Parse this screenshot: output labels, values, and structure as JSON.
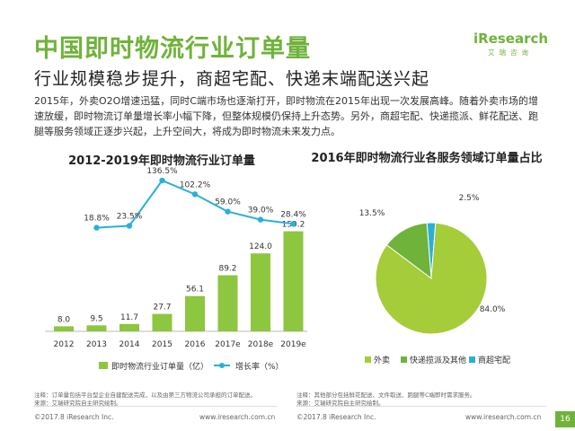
{
  "header": {
    "title": "中国即时物流行业订单量",
    "subtitle": "行业规模稳步提升，商超宅配、快递末端配送兴起",
    "logo": "iResearch",
    "logo_sub": "艾瑞咨询"
  },
  "intro": "2015年，外卖O2O增速迅猛，同时C端市场也逐渐打开，即时物流在2015年出现一次发展高峰。随着外卖市场的增速放缓，即时物流订单量增长率小幅下降，但整体规模仍保持上升态势。另外，商超宅配、快递揽派、鲜花配送、跑腿等服务领域正逐步兴起，上升空间大，将成为即时物流未来发力点。",
  "chart_data": [
    {
      "type": "bar",
      "title": "2012-2019年即时物流行业订单量",
      "categories": [
        "2012",
        "2013",
        "2014",
        "2015",
        "2016",
        "2017e",
        "2018e",
        "2019e"
      ],
      "series": [
        {
          "name": "即时物流行业订单量（亿）",
          "type": "bar",
          "values": [
            8.0,
            9.5,
            11.7,
            27.7,
            56.1,
            89.2,
            124.0,
            159.2
          ],
          "labels": [
            "8.0",
            "9.5",
            "11.7",
            "27.7",
            "56.1",
            "89.2",
            "124.0",
            "159.2"
          ],
          "color": "#8dc63f"
        },
        {
          "name": "增长率（%）",
          "type": "line",
          "values": [
            null,
            18.8,
            23.5,
            136.5,
            102.2,
            59.0,
            39.0,
            28.4
          ],
          "labels": [
            "",
            "18.8%",
            "23.5%",
            "136.5%",
            "102.2%",
            "59.0%",
            "39.0%",
            "28.4%"
          ],
          "color": "#2ab0d8"
        }
      ]
    },
    {
      "type": "pie",
      "title": "2016年即时物流行业各服务领域订单量占比",
      "categories": [
        "外卖",
        "快递揽派及其他",
        "商超宅配"
      ],
      "values": [
        84.0,
        13.5,
        2.5
      ],
      "labels": [
        "84.0%",
        "13.5%",
        "2.5%"
      ],
      "colors": [
        "#a5cc39",
        "#6fb33a",
        "#2ab0d8"
      ]
    }
  ],
  "notes": {
    "left_line1": "注释：订单量包括平台型企业自建配送完成，以及由第三方物流公司承担的订单配送。",
    "left_line2": "来源：艾瑞研究院自主研究绘制。",
    "right_line1": "注释：其他部分包括鲜花配送、文件取送、跑腿等C端即时需求服务。",
    "right_line2": "来源：艾瑞研究院自主研究绘制。"
  },
  "footer": {
    "copyright_left": "©2017.8 iResearch Inc.",
    "url_left": "www.iresearch.com.cn",
    "copyright_right": "©2017.8 iResearch Inc.",
    "url_right": "www.iresearch.com.cn",
    "page_number": "16"
  }
}
